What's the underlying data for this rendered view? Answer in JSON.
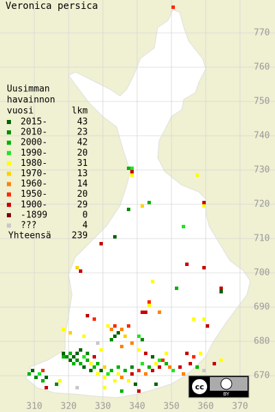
{
  "title": "Veronica persica",
  "legend": {
    "header": [
      "Uusimman",
      "havainnon",
      "vuosi"
    ],
    "count_header": "lkm",
    "entries": [
      {
        "label": "2015-",
        "count": 43,
        "color": "#006400"
      },
      {
        "label": "2010-",
        "count": 23,
        "color": "#008c00"
      },
      {
        "label": "2000-",
        "count": 42,
        "color": "#00b400"
      },
      {
        "label": "1990-",
        "count": 20,
        "color": "#1ee61e"
      },
      {
        "label": "1980-",
        "count": 31,
        "color": "#ffff00"
      },
      {
        "label": "1970-",
        "count": 13,
        "color": "#ffd200"
      },
      {
        "label": "1960-",
        "count": 14,
        "color": "#ff8200"
      },
      {
        "label": "1950-",
        "count": 20,
        "color": "#ff2800"
      },
      {
        "label": "1900-",
        "count": 29,
        "color": "#c80000"
      },
      {
        "label": "-1899",
        "count": 0,
        "color": "#780000"
      },
      {
        "label": "???",
        "count": 4,
        "color": "#c8c8c8"
      }
    ],
    "total_label": "Yhteensä",
    "total": 239
  },
  "xticks": [
    310,
    320,
    330,
    340,
    350,
    360,
    370
  ],
  "yticks": [
    670,
    680,
    690,
    700,
    710,
    720,
    730,
    740,
    750,
    760,
    770
  ],
  "license": {
    "cc": "cc",
    "by": "BY"
  },
  "squares": [
    [
      350,
      777,
      7
    ],
    [
      337,
      730,
      2
    ],
    [
      338,
      730,
      3
    ],
    [
      338,
      729,
      8
    ],
    [
      338,
      728,
      4
    ],
    [
      357,
      728,
      4
    ],
    [
      337,
      718,
      1
    ],
    [
      341,
      719,
      5
    ],
    [
      343,
      720,
      2
    ],
    [
      353,
      713,
      3
    ],
    [
      359,
      720,
      8
    ],
    [
      359,
      719,
      4
    ],
    [
      333,
      710,
      0
    ],
    [
      329,
      708,
      8
    ],
    [
      322,
      701,
      5
    ],
    [
      323,
      700,
      8
    ],
    [
      354,
      702,
      8
    ],
    [
      359,
      701,
      8
    ],
    [
      364,
      695,
      8
    ],
    [
      364,
      694,
      0
    ],
    [
      351,
      695,
      2
    ],
    [
      325,
      687,
      8
    ],
    [
      327,
      686,
      7
    ],
    [
      308,
      670,
      2
    ],
    [
      309,
      671,
      0
    ],
    [
      310,
      669,
      1
    ],
    [
      311,
      670,
      3
    ],
    [
      312,
      668,
      2
    ],
    [
      313,
      669,
      0
    ],
    [
      312,
      671,
      7
    ],
    [
      316,
      667,
      1
    ],
    [
      317,
      668,
      4
    ],
    [
      318,
      675,
      2
    ],
    [
      318,
      676,
      0
    ],
    [
      319,
      675,
      1
    ],
    [
      320,
      674,
      0
    ],
    [
      320,
      676,
      2
    ],
    [
      321,
      675,
      0
    ],
    [
      321,
      673,
      2
    ],
    [
      322,
      674,
      1
    ],
    [
      322,
      676,
      0
    ],
    [
      323,
      673,
      2
    ],
    [
      323,
      677,
      0
    ],
    [
      324,
      675,
      3
    ],
    [
      324,
      672,
      0
    ],
    [
      325,
      674,
      2
    ],
    [
      325,
      676,
      1
    ],
    [
      326,
      673,
      4
    ],
    [
      326,
      671,
      0
    ],
    [
      327,
      672,
      2
    ],
    [
      327,
      675,
      8
    ],
    [
      328,
      670,
      4
    ],
    [
      328,
      673,
      2
    ],
    [
      329,
      671,
      0
    ],
    [
      330,
      669,
      4
    ],
    [
      330,
      672,
      5
    ],
    [
      331,
      670,
      3
    ],
    [
      332,
      671,
      2
    ],
    [
      333,
      668,
      4
    ],
    [
      334,
      670,
      4
    ],
    [
      334,
      672,
      2
    ],
    [
      335,
      669,
      6
    ],
    [
      336,
      671,
      2
    ],
    [
      337,
      668,
      4
    ],
    [
      338,
      670,
      8
    ],
    [
      339,
      667,
      0
    ],
    [
      338,
      672,
      1
    ],
    [
      340,
      671,
      7
    ],
    [
      341,
      673,
      3
    ],
    [
      342,
      670,
      6
    ],
    [
      343,
      672,
      2
    ],
    [
      344,
      671,
      8
    ],
    [
      345,
      673,
      4
    ],
    [
      346,
      672,
      8
    ],
    [
      347,
      674,
      7
    ],
    [
      348,
      673,
      2
    ],
    [
      349,
      672,
      6
    ],
    [
      350,
      671,
      3
    ],
    [
      352,
      672,
      8
    ],
    [
      353,
      670,
      6
    ],
    [
      355,
      673,
      8
    ],
    [
      357,
      672,
      2
    ],
    [
      359,
      671,
      10
    ],
    [
      313,
      666,
      8
    ],
    [
      322,
      666,
      10
    ],
    [
      330,
      666,
      4
    ],
    [
      335,
      665,
      2
    ],
    [
      340,
      665,
      8
    ],
    [
      345,
      667,
      0
    ],
    [
      331,
      684,
      4
    ],
    [
      332,
      683,
      6
    ],
    [
      333,
      684,
      7
    ],
    [
      334,
      682,
      0
    ],
    [
      335,
      683,
      6
    ],
    [
      336,
      681,
      5
    ],
    [
      337,
      684,
      7
    ],
    [
      338,
      679,
      6
    ],
    [
      332,
      680,
      1
    ],
    [
      333,
      681,
      0
    ],
    [
      329,
      677,
      4
    ],
    [
      328,
      679,
      10
    ],
    [
      340,
      677,
      4
    ],
    [
      342,
      676,
      8
    ],
    [
      344,
      675,
      0
    ],
    [
      346,
      674,
      3
    ],
    [
      348,
      676,
      4
    ],
    [
      318,
      683,
      4
    ],
    [
      320,
      682,
      5
    ],
    [
      324,
      681,
      4
    ],
    [
      335,
      678,
      6
    ],
    [
      341,
      688,
      8
    ],
    [
      342,
      688,
      8
    ],
    [
      343,
      690,
      4
    ],
    [
      343,
      691,
      7
    ],
    [
      346,
      688,
      6
    ],
    [
      356,
      686,
      4
    ],
    [
      359,
      686,
      4
    ],
    [
      360,
      684,
      8
    ],
    [
      344,
      697,
      4
    ],
    [
      354,
      676,
      8
    ],
    [
      356,
      675,
      7
    ],
    [
      358,
      676,
      4
    ],
    [
      364,
      674,
      4
    ],
    [
      362,
      673,
      8
    ],
    [
      340,
      681,
      3
    ],
    [
      341,
      680,
      1
    ]
  ]
}
